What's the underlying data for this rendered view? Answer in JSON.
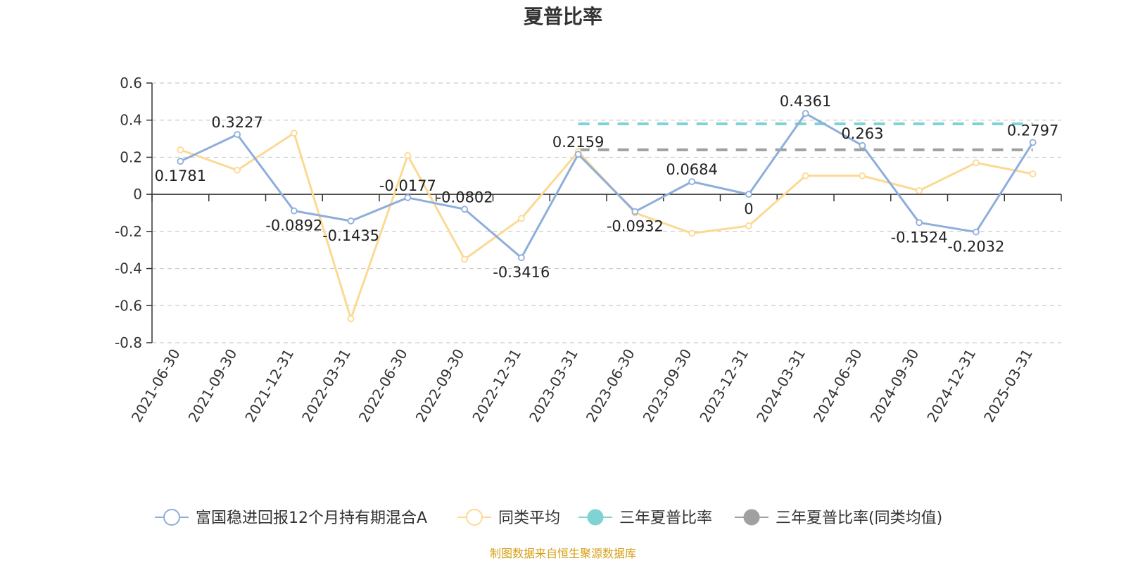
{
  "chart_data": {
    "type": "line",
    "title": "夏普比率",
    "x": [
      "2021-06-30",
      "2021-09-30",
      "2021-12-31",
      "2022-03-31",
      "2022-06-30",
      "2022-09-30",
      "2022-12-31",
      "2023-03-31",
      "2023-06-30",
      "2023-09-30",
      "2023-12-31",
      "2024-03-31",
      "2024-06-30",
      "2024-09-30",
      "2024-12-31",
      "2025-03-31"
    ],
    "y_ticks": [
      "0.6",
      "0.4",
      "0.2",
      "0",
      "-0.2",
      "-0.4",
      "-0.6",
      "-0.8"
    ],
    "ylim": [
      -0.8,
      0.6
    ],
    "grid": true,
    "legend_position": "bottom",
    "series": [
      {
        "name": "富国稳进回报12个月持有期混合A",
        "color": "#8eaedb",
        "values": [
          0.1781,
          0.3227,
          -0.0892,
          -0.1435,
          -0.0177,
          -0.0802,
          -0.3416,
          0.2159,
          -0.0932,
          0.0684,
          0,
          0.4361,
          0.263,
          -0.1524,
          -0.2032,
          0.2797
        ],
        "labels": [
          "0.1781",
          "0.3227",
          "-0.0892",
          "-0.1435",
          "-0.0177",
          "-0.0802",
          "-0.3416",
          "0.2159",
          "-0.0932",
          "0.0684",
          "0",
          "0.4361",
          "0.263",
          "-0.1524",
          "-0.2032",
          "0.2797"
        ]
      },
      {
        "name": "同类平均",
        "color": "#fcd993",
        "values": [
          0.24,
          0.13,
          0.33,
          -0.67,
          0.21,
          -0.35,
          -0.13,
          0.23,
          -0.1,
          -0.21,
          -0.17,
          0.1,
          0.1,
          0.02,
          0.17,
          0.11
        ]
      },
      {
        "name": "三年夏普比率",
        "color": "#7fd3d3",
        "style": "dashed",
        "value": 0.38,
        "x_start": "2023-03-31",
        "x_end": "2025-03-31"
      },
      {
        "name": "三年夏普比率(同类均值)",
        "color": "#a0a0a0",
        "style": "dashed",
        "value": 0.24,
        "x_start": "2023-03-31",
        "x_end": "2025-03-31"
      }
    ],
    "source": "制图数据来自恒生聚源数据库"
  }
}
